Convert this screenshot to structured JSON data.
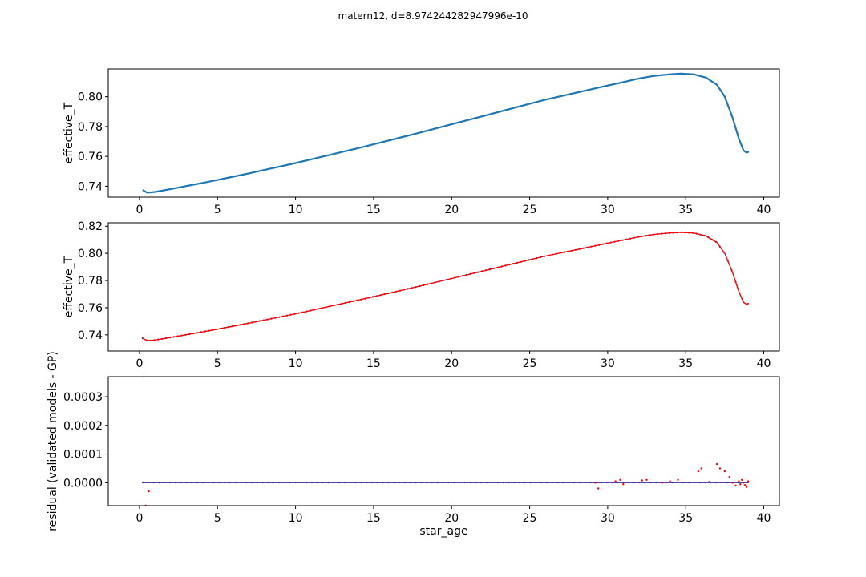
{
  "figure": {
    "suptitle": "matern12, d=8.974244282947996e-10"
  },
  "chart_data": [
    {
      "type": "line",
      "title": "",
      "xlabel": "",
      "ylabel": "effective_T",
      "xlim": [
        -2,
        41
      ],
      "ylim": [
        0.7327,
        0.8186
      ],
      "xticks": [
        0,
        5,
        10,
        15,
        20,
        25,
        30,
        35,
        40
      ],
      "yticks": [
        0.74,
        0.76,
        0.78,
        0.8
      ],
      "ytick_labels": [
        "0.74",
        "0.76",
        "0.78",
        "0.80"
      ],
      "colors": {
        "line": "#1f77b4"
      },
      "series": [
        {
          "x": [
            0.2,
            0.5,
            1,
            2,
            3,
            4,
            5,
            6,
            7,
            8,
            9,
            10,
            12,
            14,
            16,
            18,
            20,
            22,
            24,
            26,
            28,
            30,
            31,
            32,
            33,
            34,
            34.7,
            35.5,
            36.3,
            37,
            37.5,
            38,
            38.4,
            38.7,
            38.9,
            39.05
          ],
          "y": [
            0.7375,
            0.7357,
            0.7362,
            0.7381,
            0.7401,
            0.7421,
            0.7442,
            0.7464,
            0.7486,
            0.7509,
            0.7532,
            0.7555,
            0.7605,
            0.7655,
            0.7707,
            0.776,
            0.7815,
            0.787,
            0.7925,
            0.798,
            0.8027,
            0.8075,
            0.8098,
            0.8122,
            0.814,
            0.815,
            0.8155,
            0.815,
            0.8128,
            0.808,
            0.8,
            0.786,
            0.772,
            0.764,
            0.7625,
            0.7632
          ]
        }
      ]
    },
    {
      "type": "line",
      "title": "",
      "xlabel": "",
      "ylabel": "effective_T",
      "xlim": [
        -2,
        41
      ],
      "ylim": [
        0.7281,
        0.8225
      ],
      "xticks": [
        0,
        5,
        10,
        15,
        20,
        25,
        30,
        35,
        40
      ],
      "yticks": [
        0.74,
        0.76,
        0.78,
        0.8,
        0.82
      ],
      "ytick_labels": [
        "0.74",
        "0.76",
        "0.78",
        "0.80",
        "0.82"
      ],
      "colors": {
        "model_points": "#3a2ea0",
        "gp_line": "#ff0000"
      },
      "series": [
        {
          "x": [
            0.2,
            0.5,
            1,
            2,
            3,
            4,
            5,
            6,
            7,
            8,
            9,
            10,
            12,
            14,
            16,
            18,
            20,
            22,
            24,
            26,
            28,
            30,
            31,
            32,
            33,
            34,
            34.7,
            35.5,
            36.3,
            37,
            37.5,
            38,
            38.4,
            38.7,
            38.9,
            39.05
          ],
          "y": [
            0.7375,
            0.7357,
            0.7362,
            0.7381,
            0.7401,
            0.7421,
            0.7442,
            0.7464,
            0.7486,
            0.7509,
            0.7532,
            0.7555,
            0.7605,
            0.7655,
            0.7707,
            0.776,
            0.7815,
            0.787,
            0.7925,
            0.798,
            0.8027,
            0.8075,
            0.8098,
            0.8122,
            0.814,
            0.815,
            0.8155,
            0.815,
            0.8128,
            0.808,
            0.8,
            0.786,
            0.772,
            0.764,
            0.7625,
            0.7632
          ]
        }
      ]
    },
    {
      "type": "scatter",
      "title": "",
      "xlabel": "star_age",
      "ylabel": "residual (validated models - GP)",
      "xlim": [
        -2,
        41
      ],
      "ylim": [
        -8e-05,
        0.00037
      ],
      "xticks": [
        0,
        5,
        10,
        15,
        20,
        25,
        30,
        35,
        40
      ],
      "yticks": [
        0.0,
        0.0001,
        0.0002,
        0.0003
      ],
      "ytick_labels": [
        "0.0000",
        "0.0001",
        "0.0002",
        "0.0003"
      ],
      "colors": {
        "validated_points": "#ff0000",
        "model_points": "#3a2ea0",
        "zero_line": "#3a2ea0"
      },
      "series": [
        {
          "x": [
            0.25,
            0.4,
            0.6,
            29.2,
            29.4,
            30.5,
            30.8,
            31.0,
            32.2,
            32.5,
            33.5,
            34.0,
            34.5,
            35.8,
            36.0,
            36.5,
            37.0,
            37.2,
            37.5,
            37.8,
            38.0,
            38.2,
            38.4,
            38.5,
            38.6,
            38.7,
            38.8,
            38.9,
            39.0
          ],
          "y": [
            0.00037,
            -8e-05,
            -3e-05,
            0.0,
            -2e-05,
            5e-06,
            1e-05,
            -5e-06,
            8e-06,
            1e-05,
            0.0,
            5e-06,
            1e-05,
            4e-05,
            5e-05,
            3e-06,
            6.5e-05,
            5e-05,
            4e-05,
            2e-05,
            0.0,
            -1e-05,
            5e-06,
            -5e-06,
            1e-05,
            0.0,
            -8e-06,
            -1.5e-05,
            5e-06
          ]
        }
      ]
    }
  ]
}
